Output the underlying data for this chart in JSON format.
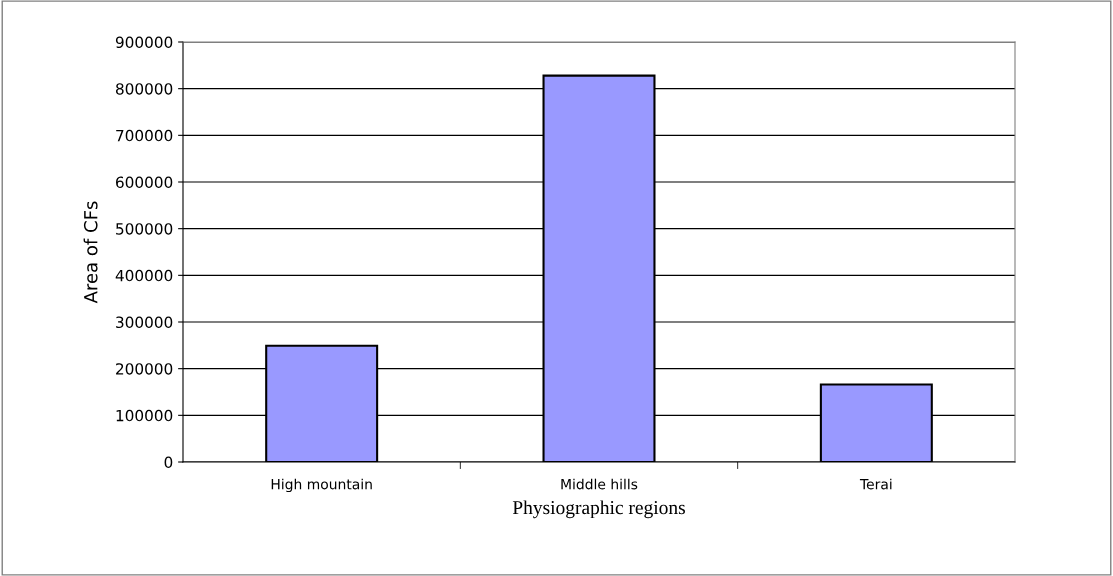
{
  "chart_data": {
    "type": "bar",
    "xlabel": "Physiographic regions",
    "ylabel": "Area of CFs",
    "categories": [
      "High mountain",
      "Middle hills",
      "Terai"
    ],
    "values": [
      249000,
      828000,
      166000
    ],
    "color": "#9999ff",
    "ylim": [
      0,
      900000
    ],
    "yticks": [
      0,
      100000,
      200000,
      300000,
      400000,
      500000,
      600000,
      700000,
      800000,
      900000
    ],
    "grid": "y"
  }
}
